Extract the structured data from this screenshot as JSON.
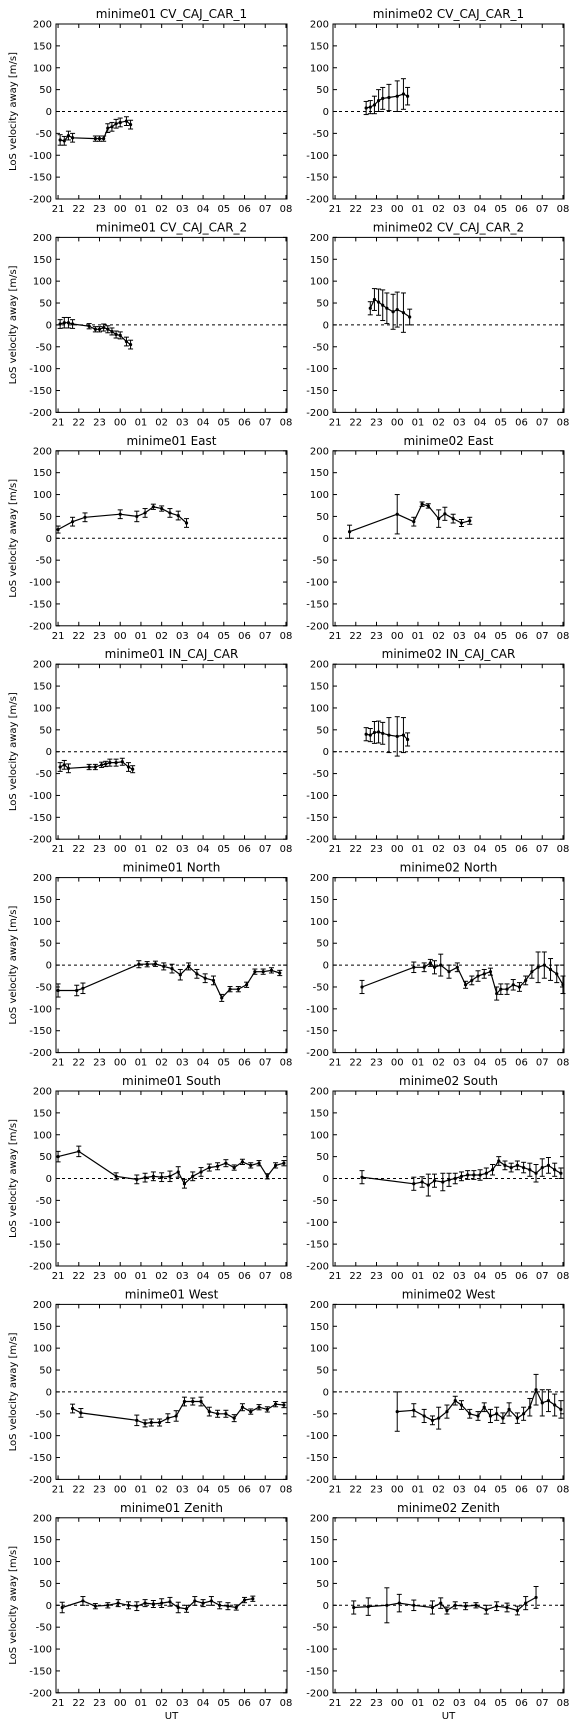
{
  "figure": {
    "ylabel": "LoS velocity away [m/s]",
    "xlabel": "UT",
    "x_ticks": [
      "21",
      "22",
      "23",
      "00",
      "01",
      "02",
      "03",
      "04",
      "05",
      "06",
      "07",
      "08"
    ],
    "y_ticks": [
      "200",
      "150",
      "100",
      "50",
      "0",
      "-50",
      "-100",
      "-150",
      "-200"
    ]
  },
  "chart_data": [
    {
      "type": "line",
      "title": "minime01 CV_CAJ_CAR_1",
      "x": [
        21.1,
        21.3,
        21.5,
        21.7,
        22.8,
        23.0,
        23.2,
        23.4,
        23.6,
        23.8,
        24.0,
        24.3,
        24.5
      ],
      "y": [
        -65,
        -67,
        -55,
        -60,
        -62,
        -62,
        -62,
        -38,
        -35,
        -28,
        -25,
        -22,
        -30
      ],
      "err": [
        12,
        10,
        10,
        10,
        6,
        6,
        6,
        10,
        10,
        10,
        10,
        10,
        10
      ],
      "xlim": [
        20.9,
        32.05
      ],
      "ylim": [
        -200,
        200
      ]
    },
    {
      "type": "line",
      "title": "minime02 CV_CAJ_CAR_1",
      "x": [
        22.5,
        22.7,
        22.9,
        23.1,
        23.3,
        23.6,
        24.0,
        24.3,
        24.5
      ],
      "y": [
        8,
        10,
        15,
        25,
        30,
        32,
        35,
        40,
        35
      ],
      "err": [
        15,
        15,
        20,
        25,
        25,
        30,
        35,
        35,
        20
      ],
      "xlim": [
        20.9,
        32.05
      ],
      "ylim": [
        -200,
        200
      ]
    },
    {
      "type": "line",
      "title": "minime01 CV_CAJ_CAR_2",
      "x": [
        21.1,
        21.3,
        21.5,
        21.7,
        22.5,
        22.8,
        23.0,
        23.2,
        23.4,
        23.6,
        23.8,
        24.0,
        24.3,
        24.5
      ],
      "y": [
        2,
        5,
        5,
        2,
        -3,
        -10,
        -10,
        -6,
        -10,
        -15,
        -22,
        -24,
        -38,
        -45
      ],
      "err": [
        10,
        12,
        12,
        10,
        6,
        6,
        6,
        8,
        8,
        8,
        8,
        8,
        10,
        10
      ],
      "xlim": [
        20.9,
        32.05
      ],
      "ylim": [
        -200,
        200
      ]
    },
    {
      "type": "line",
      "title": "minime02 CV_CAJ_CAR_2",
      "x": [
        22.7,
        22.9,
        23.1,
        23.3,
        23.5,
        23.8,
        24.0,
        24.3,
        24.6
      ],
      "y": [
        38,
        58,
        52,
        45,
        38,
        30,
        35,
        28,
        18
      ],
      "err": [
        15,
        25,
        30,
        35,
        35,
        40,
        40,
        45,
        18
      ],
      "xlim": [
        20.9,
        32.05
      ],
      "ylim": [
        -200,
        200
      ]
    },
    {
      "type": "line",
      "title": "minime01 East",
      "x": [
        21.0,
        21.7,
        22.3,
        24.0,
        24.8,
        25.2,
        25.6,
        26.0,
        26.4,
        26.8,
        27.2
      ],
      "y": [
        20,
        38,
        48,
        55,
        50,
        58,
        72,
        68,
        58,
        52,
        35
      ],
      "err": [
        8,
        10,
        10,
        10,
        12,
        10,
        6,
        6,
        10,
        10,
        10
      ],
      "xlim": [
        20.9,
        32.05
      ],
      "ylim": [
        -200,
        200
      ]
    },
    {
      "type": "line",
      "title": "minime02 East",
      "x": [
        21.7,
        24.0,
        24.8,
        25.2,
        25.5,
        26.0,
        26.3,
        26.7,
        27.1,
        27.5
      ],
      "y": [
        15,
        55,
        38,
        78,
        74,
        45,
        56,
        45,
        35,
        40
      ],
      "err": [
        15,
        45,
        10,
        5,
        5,
        20,
        15,
        10,
        8,
        8
      ],
      "xlim": [
        20.9,
        32.05
      ],
      "ylim": [
        -200,
        200
      ]
    },
    {
      "type": "line",
      "title": "minime01 IN_CAJ_CAR",
      "x": [
        21.1,
        21.3,
        21.5,
        22.5,
        22.8,
        23.1,
        23.3,
        23.5,
        23.8,
        24.1,
        24.4,
        24.6
      ],
      "y": [
        -35,
        -30,
        -38,
        -35,
        -35,
        -30,
        -28,
        -25,
        -25,
        -23,
        -35,
        -40
      ],
      "err": [
        10,
        10,
        10,
        6,
        6,
        6,
        6,
        8,
        8,
        8,
        10,
        8
      ],
      "xlim": [
        20.9,
        32.05
      ],
      "ylim": [
        -200,
        200
      ]
    },
    {
      "type": "line",
      "title": "minime02 IN_CAJ_CAR",
      "x": [
        22.5,
        22.7,
        22.9,
        23.1,
        23.3,
        23.6,
        24.0,
        24.3,
        24.5
      ],
      "y": [
        40,
        38,
        44,
        45,
        42,
        38,
        35,
        38,
        28
      ],
      "err": [
        15,
        15,
        25,
        25,
        25,
        40,
        45,
        40,
        15
      ],
      "xlim": [
        20.9,
        32.05
      ],
      "ylim": [
        -200,
        200
      ]
    },
    {
      "type": "line",
      "title": "minime01 North",
      "x": [
        21.0,
        21.9,
        22.2,
        24.9,
        25.3,
        25.7,
        26.1,
        26.5,
        26.9,
        27.3,
        27.7,
        28.1,
        28.5,
        28.9,
        29.3,
        29.7,
        30.1,
        30.5,
        30.9,
        31.3,
        31.7
      ],
      "y": [
        -58,
        -58,
        -53,
        2,
        2,
        3,
        -3,
        -8,
        -22,
        -3,
        -20,
        -30,
        -35,
        -75,
        -55,
        -55,
        -45,
        -15,
        -15,
        -12,
        -18
      ],
      "err": [
        15,
        12,
        12,
        8,
        6,
        6,
        8,
        10,
        12,
        8,
        10,
        10,
        10,
        8,
        6,
        6,
        6,
        6,
        6,
        6,
        6
      ],
      "xlim": [
        20.9,
        32.05
      ],
      "ylim": [
        -200,
        200
      ]
    },
    {
      "type": "line",
      "title": "minime02 North",
      "x": [
        22.3,
        24.8,
        25.3,
        25.6,
        25.8,
        26.1,
        26.5,
        26.9,
        27.3,
        27.6,
        27.9,
        28.2,
        28.5,
        28.8,
        29.0,
        29.3,
        29.6,
        29.9,
        30.2,
        30.5,
        30.8,
        31.1,
        31.4,
        31.7,
        32.0
      ],
      "y": [
        -50,
        -5,
        -5,
        5,
        -5,
        0,
        -15,
        -5,
        -45,
        -35,
        -25,
        -20,
        -15,
        -65,
        -55,
        -55,
        -45,
        -50,
        -35,
        -15,
        -5,
        0,
        -10,
        -20,
        -45
      ],
      "err": [
        15,
        12,
        10,
        8,
        15,
        25,
        15,
        10,
        8,
        10,
        12,
        10,
        8,
        15,
        12,
        12,
        12,
        10,
        10,
        15,
        35,
        30,
        25,
        20,
        20
      ],
      "xlim": [
        20.9,
        32.05
      ],
      "ylim": [
        -200,
        200
      ]
    },
    {
      "type": "line",
      "title": "minime01 South",
      "x": [
        21.0,
        22.0,
        23.8,
        24.8,
        25.2,
        25.6,
        26.0,
        26.4,
        26.8,
        27.1,
        27.5,
        27.9,
        28.3,
        28.7,
        29.1,
        29.5,
        29.9,
        30.3,
        30.7,
        31.1,
        31.5,
        31.9
      ],
      "y": [
        50,
        62,
        5,
        -2,
        2,
        5,
        3,
        5,
        15,
        -12,
        5,
        15,
        25,
        28,
        35,
        25,
        38,
        30,
        35,
        5,
        30,
        35
      ],
      "err": [
        12,
        12,
        8,
        10,
        10,
        10,
        10,
        12,
        12,
        10,
        10,
        10,
        8,
        8,
        8,
        6,
        6,
        6,
        6,
        6,
        6,
        6
      ],
      "xlim": [
        20.9,
        32.05
      ],
      "ylim": [
        -200,
        200
      ]
    },
    {
      "type": "line",
      "title": "minime02 South",
      "x": [
        22.3,
        24.8,
        25.2,
        25.5,
        25.8,
        26.2,
        26.5,
        26.8,
        27.1,
        27.4,
        27.7,
        28.0,
        28.3,
        28.6,
        28.9,
        29.2,
        29.5,
        29.8,
        30.1,
        30.4,
        30.7,
        31.0,
        31.3,
        31.6,
        31.9
      ],
      "y": [
        3,
        -12,
        -8,
        -15,
        -5,
        -8,
        -3,
        0,
        5,
        8,
        8,
        8,
        12,
        20,
        40,
        30,
        25,
        30,
        25,
        20,
        12,
        25,
        30,
        20,
        12
      ],
      "err": [
        15,
        15,
        12,
        25,
        15,
        20,
        15,
        12,
        10,
        10,
        10,
        12,
        12,
        12,
        10,
        10,
        10,
        10,
        12,
        15,
        20,
        20,
        18,
        15,
        12
      ],
      "xlim": [
        20.9,
        32.05
      ],
      "ylim": [
        -200,
        200
      ]
    },
    {
      "type": "line",
      "title": "minime01 West",
      "x": [
        21.7,
        22.1,
        24.8,
        25.2,
        25.5,
        25.9,
        26.3,
        26.7,
        27.1,
        27.5,
        27.9,
        28.3,
        28.7,
        29.1,
        29.5,
        29.9,
        30.3,
        30.7,
        31.1,
        31.5,
        31.9
      ],
      "y": [
        -38,
        -48,
        -65,
        -72,
        -70,
        -70,
        -60,
        -55,
        -22,
        -22,
        -22,
        -45,
        -50,
        -50,
        -60,
        -35,
        -45,
        -35,
        -40,
        -28,
        -30
      ],
      "err": [
        10,
        10,
        12,
        8,
        8,
        8,
        10,
        12,
        10,
        8,
        10,
        10,
        8,
        8,
        8,
        8,
        6,
        6,
        6,
        6,
        6
      ],
      "xlim": [
        20.9,
        32.05
      ],
      "ylim": [
        -200,
        200
      ]
    },
    {
      "type": "line",
      "title": "minime02 West",
      "x": [
        24.0,
        24.8,
        25.3,
        25.7,
        26.0,
        26.4,
        26.8,
        27.1,
        27.5,
        27.9,
        28.2,
        28.5,
        28.8,
        29.1,
        29.4,
        29.8,
        30.1,
        30.4,
        30.7,
        31.0,
        31.3,
        31.6,
        31.9
      ],
      "y": [
        -45,
        -42,
        -55,
        -65,
        -60,
        -45,
        -20,
        -30,
        -50,
        -55,
        -35,
        -55,
        -50,
        -60,
        -40,
        -60,
        -50,
        -35,
        5,
        -25,
        -20,
        -30,
        -40
      ],
      "err": [
        45,
        15,
        15,
        10,
        25,
        15,
        10,
        10,
        10,
        10,
        10,
        15,
        15,
        12,
        15,
        12,
        15,
        20,
        35,
        30,
        25,
        25,
        20
      ],
      "xlim": [
        20.9,
        32.05
      ],
      "ylim": [
        -200,
        200
      ]
    },
    {
      "type": "line",
      "title": "minime01 Zenith",
      "x": [
        21.2,
        22.2,
        22.8,
        23.4,
        23.9,
        24.4,
        24.8,
        25.2,
        25.6,
        26.0,
        26.4,
        26.8,
        27.2,
        27.6,
        28.0,
        28.4,
        28.8,
        29.2,
        29.6,
        30.0,
        30.4
      ],
      "y": [
        -5,
        10,
        -2,
        0,
        5,
        0,
        -2,
        5,
        3,
        5,
        8,
        -5,
        -8,
        10,
        5,
        10,
        0,
        -2,
        -5,
        12,
        15
      ],
      "err": [
        12,
        10,
        6,
        6,
        8,
        8,
        10,
        8,
        8,
        10,
        10,
        12,
        8,
        10,
        8,
        10,
        8,
        8,
        6,
        6,
        6
      ],
      "xlim": [
        20.9,
        32.05
      ],
      "ylim": [
        -200,
        200
      ]
    },
    {
      "type": "line",
      "title": "minime02 Zenith",
      "x": [
        21.9,
        22.6,
        23.5,
        24.1,
        24.8,
        25.7,
        26.1,
        26.4,
        26.8,
        27.3,
        27.8,
        28.3,
        28.8,
        29.3,
        29.8,
        30.2,
        30.7
      ],
      "y": [
        -5,
        -3,
        0,
        5,
        0,
        -5,
        5,
        -12,
        0,
        -2,
        0,
        -10,
        -2,
        -5,
        -12,
        5,
        18
      ],
      "err": [
        15,
        20,
        40,
        20,
        12,
        15,
        12,
        8,
        8,
        8,
        6,
        10,
        10,
        10,
        10,
        15,
        25
      ],
      "xlim": [
        20.9,
        32.05
      ],
      "ylim": [
        -200,
        200
      ]
    }
  ]
}
